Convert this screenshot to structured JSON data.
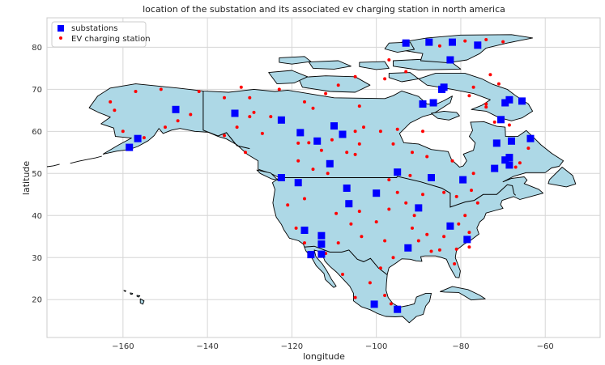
{
  "chart_data": {
    "type": "scatter",
    "title": "location of the substation and its associated ev charging station in north america",
    "xlabel": "longitude",
    "ylabel": "latitude",
    "xlim": [
      -178,
      -47
    ],
    "ylim": [
      11,
      87
    ],
    "x_ticks": [
      -160,
      -140,
      -120,
      -100,
      -80,
      -60
    ],
    "y_ticks": [
      20,
      30,
      40,
      50,
      60,
      70,
      80
    ],
    "x_tick_labels": [
      "−160",
      "−140",
      "−120",
      "−100",
      "−80",
      "−60"
    ],
    "y_tick_labels": [
      "20",
      "30",
      "40",
      "50",
      "60",
      "70",
      "80"
    ],
    "grid": true,
    "legend_position": "top-left",
    "colors": {
      "land": "#add8e6",
      "coast": "#000000",
      "substation": "#0000ff",
      "ev_station": "#ff0000",
      "grid": "#d6d6d6"
    },
    "series": [
      {
        "name": "substations",
        "marker": "square",
        "color": "#0000ff",
        "points": [
          [
            -93,
            81
          ],
          [
            -87.5,
            81.2
          ],
          [
            -82,
            81.2
          ],
          [
            -76,
            80.5
          ],
          [
            -82.5,
            77
          ],
          [
            -84,
            70.5
          ],
          [
            -84.5,
            70
          ],
          [
            -89,
            66.5
          ],
          [
            -86.5,
            66.8
          ],
          [
            -70.5,
            62.8
          ],
          [
            -69.5,
            66.8
          ],
          [
            -68.5,
            67.5
          ],
          [
            -65.5,
            67.2
          ],
          [
            -71.5,
            57.2
          ],
          [
            -68,
            57.7
          ],
          [
            -63.5,
            58.3
          ],
          [
            -69.5,
            53.2
          ],
          [
            -68.5,
            53.8
          ],
          [
            -68.5,
            52
          ],
          [
            -72,
            51.2
          ],
          [
            -79.5,
            48.5
          ],
          [
            -87,
            49
          ],
          [
            -95,
            50.3
          ],
          [
            -110,
            61.3
          ],
          [
            -108,
            59.3
          ],
          [
            -118,
            59.7
          ],
          [
            -114,
            57.7
          ],
          [
            -111,
            52.3
          ],
          [
            -122.5,
            62.7
          ],
          [
            -133.5,
            64.3
          ],
          [
            -147.5,
            65.2
          ],
          [
            -156.5,
            58.3
          ],
          [
            -158.5,
            56.2
          ],
          [
            -122.5,
            49
          ],
          [
            -118.5,
            47.8
          ],
          [
            -107,
            46.5
          ],
          [
            -106.5,
            42.8
          ],
          [
            -100,
            45.3
          ],
          [
            -90,
            41.8
          ],
          [
            -82.5,
            37.5
          ],
          [
            -78.5,
            34.3
          ],
          [
            -117,
            36.5
          ],
          [
            -113,
            35.2
          ],
          [
            -113,
            33.2
          ],
          [
            -113,
            30.8
          ],
          [
            -115.5,
            30.7
          ],
          [
            -92.5,
            32.3
          ],
          [
            -100.5,
            18.9
          ],
          [
            -95,
            17.7
          ]
        ]
      },
      {
        "name": "EV charging station",
        "marker": "circle",
        "color": "#ff0000",
        "points": [
          [
            -79,
            81.5
          ],
          [
            -74,
            81.8
          ],
          [
            -70,
            81.3
          ],
          [
            -85,
            80.3
          ],
          [
            -97,
            77
          ],
          [
            -93,
            74.2
          ],
          [
            -73,
            73.5
          ],
          [
            -71,
            71.3
          ],
          [
            -77,
            70.5
          ],
          [
            -78,
            68.5
          ],
          [
            -74,
            66.5
          ],
          [
            -74,
            65.8
          ],
          [
            -72,
            62.2
          ],
          [
            -68.5,
            61.5
          ],
          [
            -64,
            56
          ],
          [
            -66,
            52.5
          ],
          [
            -67,
            51.5
          ],
          [
            -77,
            50
          ],
          [
            -77.5,
            46
          ],
          [
            -76,
            43
          ],
          [
            -79,
            40
          ],
          [
            -80.5,
            38
          ],
          [
            -78,
            36
          ],
          [
            -78,
            32.5
          ],
          [
            -81,
            32
          ],
          [
            -85,
            31.8
          ],
          [
            -87,
            31.5
          ],
          [
            -81.5,
            28.5
          ],
          [
            -84,
            35
          ],
          [
            -88,
            35.5
          ],
          [
            -90,
            34
          ],
          [
            -91.5,
            37
          ],
          [
            -91,
            40
          ],
          [
            -93,
            43
          ],
          [
            -95,
            45.5
          ],
          [
            -97,
            48.5
          ],
          [
            -92,
            49.5
          ],
          [
            -89,
            45
          ],
          [
            -84,
            45.5
          ],
          [
            -81,
            44.5
          ],
          [
            -96,
            57
          ],
          [
            -95,
            60.5
          ],
          [
            -89,
            60
          ],
          [
            -88,
            54
          ],
          [
            -82,
            53
          ],
          [
            -91.5,
            55
          ],
          [
            -99,
            60
          ],
          [
            -103,
            61
          ],
          [
            -105,
            60
          ],
          [
            -104,
            57
          ],
          [
            -105,
            54.5
          ],
          [
            -107,
            55
          ],
          [
            -110.5,
            58
          ],
          [
            -113,
            55.5
          ],
          [
            -116,
            57.3
          ],
          [
            -118.5,
            57.2
          ],
          [
            -118.5,
            53
          ],
          [
            -115,
            51
          ],
          [
            -111.5,
            50
          ],
          [
            -115,
            65.5
          ],
          [
            -117,
            67
          ],
          [
            -123,
            70
          ],
          [
            -132,
            70.5
          ],
          [
            -136,
            68
          ],
          [
            -130,
            68
          ],
          [
            -129,
            64.5
          ],
          [
            -130,
            63.5
          ],
          [
            -125,
            63.5
          ],
          [
            -127,
            59.5
          ],
          [
            -133,
            61
          ],
          [
            -136,
            59
          ],
          [
            -131,
            55
          ],
          [
            -144,
            64
          ],
          [
            -147,
            62.5
          ],
          [
            -150,
            61
          ],
          [
            -155,
            58.5
          ],
          [
            -157,
            58.5
          ],
          [
            -160,
            60
          ],
          [
            -162,
            65
          ],
          [
            -163,
            67
          ],
          [
            -157,
            69.5
          ],
          [
            -151,
            70
          ],
          [
            -142,
            69.5
          ],
          [
            -109,
            71
          ],
          [
            -105,
            73
          ],
          [
            -98,
            72.5
          ],
          [
            -112,
            69
          ],
          [
            -104,
            66
          ],
          [
            -117,
            44
          ],
          [
            -121,
            42.5
          ],
          [
            -119,
            37
          ],
          [
            -117,
            33.5
          ],
          [
            -112,
            31
          ],
          [
            -109,
            33.5
          ],
          [
            -103.5,
            35
          ],
          [
            -106,
            38
          ],
          [
            -109.5,
            40.5
          ],
          [
            -104,
            41
          ],
          [
            -97,
            41.5
          ],
          [
            -100,
            38.5
          ],
          [
            -98,
            34
          ],
          [
            -96,
            30
          ],
          [
            -99,
            27.5
          ],
          [
            -101.5,
            24
          ],
          [
            -98,
            21
          ],
          [
            -96.5,
            19
          ],
          [
            -105,
            20.5
          ],
          [
            -108,
            26
          ]
        ]
      }
    ]
  }
}
